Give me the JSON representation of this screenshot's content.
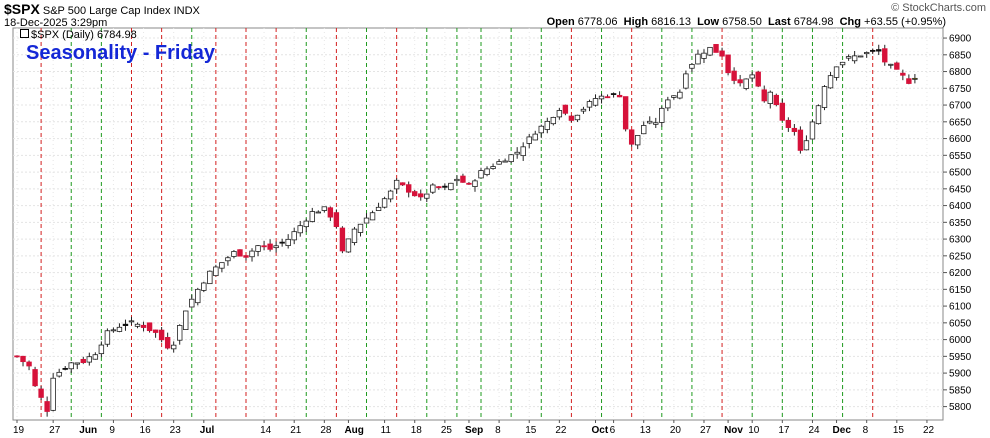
{
  "header": {
    "symbol": "$SPX",
    "name": "S&P 500 Large Cap Index",
    "exchange": "INDX",
    "date": "18-Dec-2025 3:29pm",
    "watermark": "© StockCharts.com",
    "open_label": "Open",
    "open": "6778.06",
    "high_label": "High",
    "high": "6816.13",
    "low_label": "Low",
    "low": "6758.50",
    "last_label": "Last",
    "last": "6784.98",
    "chg_label": "Chg",
    "chg": "+63.55 (+0.95%)",
    "legend": "$SPX (Daily) 6784.98"
  },
  "chart_data": {
    "type": "candlestick",
    "title": "Seasonality - Friday",
    "ylim": [
      5760,
      6930
    ],
    "y_ticks": [
      5800,
      5850,
      5900,
      5950,
      6000,
      6050,
      6100,
      6150,
      6200,
      6250,
      6300,
      6350,
      6400,
      6450,
      6500,
      6550,
      6600,
      6650,
      6700,
      6750,
      6800,
      6850,
      6900
    ],
    "x_labels": [
      {
        "i": 0,
        "label": "19"
      },
      {
        "i": 6,
        "label": "27"
      },
      {
        "i": 11,
        "label": "Jun",
        "bold": true
      },
      {
        "i": 16,
        "label": "9"
      },
      {
        "i": 21,
        "label": "16"
      },
      {
        "i": 26,
        "label": "23"
      },
      {
        "i": 31,
        "label": "Jul",
        "bold": true
      },
      {
        "i": 41,
        "label": "14"
      },
      {
        "i": 46,
        "label": "21"
      },
      {
        "i": 51,
        "label": "28"
      },
      {
        "i": 55,
        "label": "Aug",
        "bold": true
      },
      {
        "i": 61,
        "label": "11"
      },
      {
        "i": 66,
        "label": "18"
      },
      {
        "i": 71,
        "label": "25"
      },
      {
        "i": 75,
        "label": "Sep",
        "bold": true
      },
      {
        "i": 80,
        "label": "8"
      },
      {
        "i": 85,
        "label": "15"
      },
      {
        "i": 90,
        "label": "22"
      },
      {
        "i": 96,
        "label": "Oct",
        "bold": true
      },
      {
        "i": 99,
        "label": "6"
      },
      {
        "i": 104,
        "label": "13"
      },
      {
        "i": 109,
        "label": "20"
      },
      {
        "i": 114,
        "label": "27"
      },
      {
        "i": 118,
        "label": "Nov",
        "bold": true
      },
      {
        "i": 122,
        "label": "10"
      },
      {
        "i": 127,
        "label": "17"
      },
      {
        "i": 132,
        "label": "24"
      },
      {
        "i": 136,
        "label": "Dec",
        "bold": true
      },
      {
        "i": 141,
        "label": "8"
      },
      {
        "i": 146,
        "label": "15"
      },
      {
        "i": 151,
        "label": "22"
      }
    ],
    "friday_lines": [
      {
        "i": 4,
        "color": "#d32020"
      },
      {
        "i": 9,
        "color": "#1e9a1e"
      },
      {
        "i": 14,
        "color": "#1e9a1e"
      },
      {
        "i": 19,
        "color": "#d32020"
      },
      {
        "i": 24,
        "color": "#d32020"
      },
      {
        "i": 29,
        "color": "#1e9a1e"
      },
      {
        "i": 33,
        "color": "#d32020"
      },
      {
        "i": 38,
        "color": "#d32020"
      },
      {
        "i": 43,
        "color": "#d32020"
      },
      {
        "i": 48,
        "color": "#1e9a1e"
      },
      {
        "i": 53,
        "color": "#d32020"
      },
      {
        "i": 58,
        "color": "#1e9a1e"
      },
      {
        "i": 63,
        "color": "#d32020"
      },
      {
        "i": 68,
        "color": "#1e9a1e"
      },
      {
        "i": 73,
        "color": "#1e9a1e"
      },
      {
        "i": 77,
        "color": "#1e9a1e"
      },
      {
        "i": 82,
        "color": "#1e9a1e"
      },
      {
        "i": 87,
        "color": "#1e9a1e"
      },
      {
        "i": 92,
        "color": "#d32020"
      },
      {
        "i": 97,
        "color": "#1e9a1e"
      },
      {
        "i": 102,
        "color": "#d32020"
      },
      {
        "i": 107,
        "color": "#1e9a1e"
      },
      {
        "i": 112,
        "color": "#1e9a1e"
      },
      {
        "i": 117,
        "color": "#d32020"
      },
      {
        "i": 122,
        "color": "#1e9a1e"
      },
      {
        "i": 127,
        "color": "#1e9a1e"
      },
      {
        "i": 132,
        "color": "#1e9a1e"
      },
      {
        "i": 137,
        "color": "#1e9a1e"
      },
      {
        "i": 142,
        "color": "#d32020"
      }
    ],
    "anchors": [
      [
        0,
        5950
      ],
      [
        2,
        5920
      ],
      [
        3,
        5860
      ],
      [
        5,
        5790
      ],
      [
        6,
        5890
      ],
      [
        9,
        5930
      ],
      [
        11,
        5935
      ],
      [
        13,
        5960
      ],
      [
        15,
        6020
      ],
      [
        17,
        6040
      ],
      [
        19,
        6050
      ],
      [
        21,
        6040
      ],
      [
        23,
        6020
      ],
      [
        25,
        5980
      ],
      [
        26,
        5990
      ],
      [
        28,
        6090
      ],
      [
        30,
        6150
      ],
      [
        32,
        6200
      ],
      [
        34,
        6230
      ],
      [
        36,
        6260
      ],
      [
        38,
        6250
      ],
      [
        40,
        6280
      ],
      [
        42,
        6270
      ],
      [
        45,
        6300
      ],
      [
        47,
        6340
      ],
      [
        49,
        6380
      ],
      [
        51,
        6390
      ],
      [
        52,
        6370
      ],
      [
        53,
        6340
      ],
      [
        54,
        6260
      ],
      [
        56,
        6330
      ],
      [
        59,
        6380
      ],
      [
        62,
        6440
      ],
      [
        63,
        6470
      ],
      [
        65,
        6445
      ],
      [
        67,
        6420
      ],
      [
        69,
        6455
      ],
      [
        71,
        6450
      ],
      [
        73,
        6480
      ],
      [
        75,
        6460
      ],
      [
        77,
        6500
      ],
      [
        79,
        6520
      ],
      [
        81,
        6540
      ],
      [
        83,
        6560
      ],
      [
        85,
        6600
      ],
      [
        86,
        6620
      ],
      [
        88,
        6650
      ],
      [
        90,
        6690
      ],
      [
        92,
        6660
      ],
      [
        94,
        6690
      ],
      [
        96,
        6720
      ],
      [
        98,
        6730
      ],
      [
        100,
        6730
      ],
      [
        101,
        6630
      ],
      [
        102,
        6580
      ],
      [
        104,
        6640
      ],
      [
        106,
        6650
      ],
      [
        108,
        6720
      ],
      [
        110,
        6740
      ],
      [
        111,
        6800
      ],
      [
        113,
        6850
      ],
      [
        115,
        6870
      ],
      [
        117,
        6850
      ],
      [
        118,
        6800
      ],
      [
        120,
        6760
      ],
      [
        122,
        6790
      ],
      [
        124,
        6710
      ],
      [
        125,
        6740
      ],
      [
        127,
        6650
      ],
      [
        129,
        6620
      ],
      [
        130,
        6560
      ],
      [
        131,
        6600
      ],
      [
        133,
        6700
      ],
      [
        134,
        6760
      ],
      [
        136,
        6820
      ],
      [
        138,
        6840
      ],
      [
        140,
        6850
      ],
      [
        142,
        6860
      ],
      [
        143,
        6860
      ],
      [
        144,
        6830
      ],
      [
        146,
        6800
      ],
      [
        148,
        6770
      ],
      [
        149,
        6785
      ]
    ],
    "ohlc_note": "Daily OHLC candlesticks, values approximated from price axis"
  }
}
